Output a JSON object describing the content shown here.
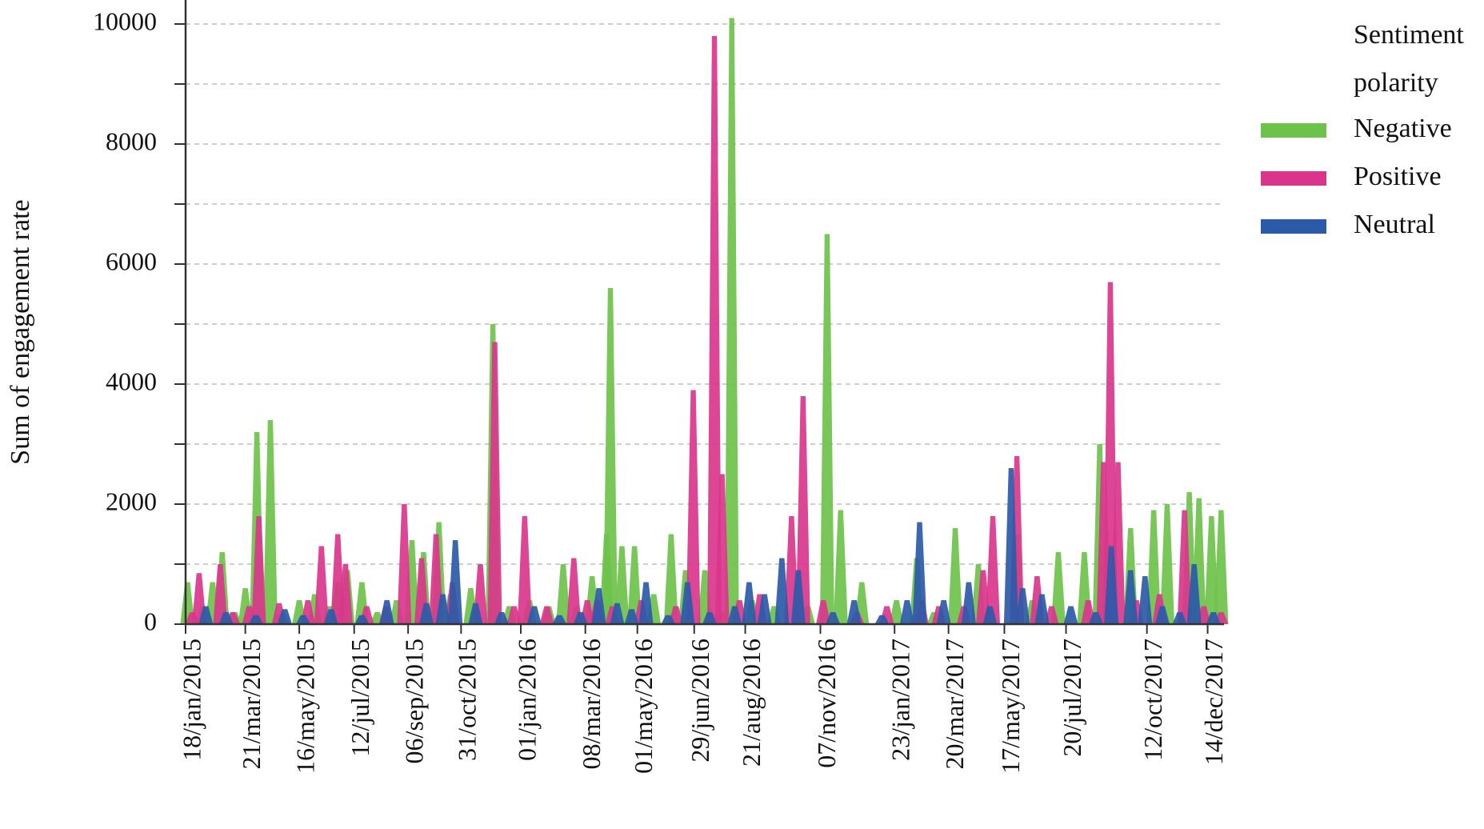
{
  "chart_data": {
    "type": "area",
    "title": "",
    "xlabel": "",
    "ylabel": "Sum of engagement rate",
    "ylim": [
      0,
      10000
    ],
    "y_ticks": [
      0,
      2000,
      4000,
      6000,
      8000,
      10000
    ],
    "x_range": [
      "2015-01-18",
      "2017-12-31"
    ],
    "x_tick_labels": [
      "18/jan/2015",
      "21/mar/2015",
      "16/may/2015",
      "12/jul/2015",
      "06/sep/2015",
      "31/oct/2015",
      "01/jan/2016",
      "08/mar/2016",
      "01/may/2016",
      "29/jun/2016",
      "21/aug/2016",
      "07/nov/2016",
      "23/jan/2017",
      "20/mar/2017",
      "17/may/2017",
      "20/jul/2017",
      "12/oct/2017",
      "14/dec/2017"
    ],
    "x_tick_dates": [
      "2015-01-18",
      "2015-03-21",
      "2015-05-16",
      "2015-07-12",
      "2015-09-06",
      "2015-10-31",
      "2016-01-01",
      "2016-03-08",
      "2016-05-01",
      "2016-06-29",
      "2016-08-21",
      "2016-11-07",
      "2017-01-23",
      "2017-03-20",
      "2017-05-17",
      "2017-07-20",
      "2017-10-12",
      "2017-12-14"
    ],
    "grid": "horizontal dashed",
    "legend": {
      "title_line1": "Sentiment",
      "title_line2": "polarity",
      "placement": "right"
    },
    "series": [
      {
        "name": "Negative",
        "color": "#6cc24a",
        "points": [
          [
            "2015-01-20",
            700
          ],
          [
            "2015-02-05",
            300
          ],
          [
            "2015-02-15",
            700
          ],
          [
            "2015-02-25",
            1200
          ],
          [
            "2015-03-10",
            200
          ],
          [
            "2015-03-21",
            600
          ],
          [
            "2015-04-02",
            3200
          ],
          [
            "2015-04-16",
            3400
          ],
          [
            "2015-04-28",
            200
          ],
          [
            "2015-05-16",
            400
          ],
          [
            "2015-06-01",
            500
          ],
          [
            "2015-06-16",
            300
          ],
          [
            "2015-06-25",
            700
          ],
          [
            "2015-07-05",
            900
          ],
          [
            "2015-07-20",
            700
          ],
          [
            "2015-08-05",
            200
          ],
          [
            "2015-08-25",
            400
          ],
          [
            "2015-09-10",
            1400
          ],
          [
            "2015-09-22",
            1200
          ],
          [
            "2015-10-08",
            1700
          ],
          [
            "2015-10-20",
            500
          ],
          [
            "2015-11-10",
            600
          ],
          [
            "2015-12-03",
            5000
          ],
          [
            "2015-12-20",
            300
          ],
          [
            "2016-01-10",
            400
          ],
          [
            "2016-01-30",
            300
          ],
          [
            "2016-02-14",
            1000
          ],
          [
            "2016-02-28",
            300
          ],
          [
            "2016-03-15",
            800
          ],
          [
            "2016-03-30",
            1500
          ],
          [
            "2016-04-03",
            5600
          ],
          [
            "2016-04-15",
            1300
          ],
          [
            "2016-04-28",
            1300
          ],
          [
            "2016-05-18",
            500
          ],
          [
            "2016-06-05",
            1500
          ],
          [
            "2016-06-20",
            900
          ],
          [
            "2016-07-10",
            900
          ],
          [
            "2016-07-28",
            200
          ],
          [
            "2016-08-07",
            10100
          ],
          [
            "2016-08-28",
            400
          ],
          [
            "2016-09-20",
            300
          ],
          [
            "2016-10-25",
            300
          ],
          [
            "2016-11-14",
            6500
          ],
          [
            "2016-11-28",
            1900
          ],
          [
            "2016-12-20",
            700
          ],
          [
            "2017-01-25",
            400
          ],
          [
            "2017-02-15",
            1100
          ],
          [
            "2017-03-05",
            200
          ],
          [
            "2017-03-27",
            1600
          ],
          [
            "2017-04-20",
            1000
          ],
          [
            "2017-05-30",
            1500
          ],
          [
            "2017-06-15",
            400
          ],
          [
            "2017-07-12",
            1200
          ],
          [
            "2017-08-08",
            1200
          ],
          [
            "2017-08-24",
            3000
          ],
          [
            "2017-09-25",
            1600
          ],
          [
            "2017-10-19",
            1900
          ],
          [
            "2017-11-02",
            2000
          ],
          [
            "2017-11-25",
            2200
          ],
          [
            "2017-12-05",
            2100
          ],
          [
            "2017-12-18",
            1800
          ],
          [
            "2017-12-28",
            1900
          ]
        ]
      },
      {
        "name": "Positive",
        "color": "#d9368b",
        "points": [
          [
            "2015-01-25",
            200
          ],
          [
            "2015-02-01",
            850
          ],
          [
            "2015-02-23",
            1000
          ],
          [
            "2015-03-08",
            200
          ],
          [
            "2015-03-25",
            300
          ],
          [
            "2015-04-04",
            1800
          ],
          [
            "2015-04-25",
            350
          ],
          [
            "2015-05-25",
            400
          ],
          [
            "2015-06-08",
            1300
          ],
          [
            "2015-06-25",
            1500
          ],
          [
            "2015-07-03",
            1000
          ],
          [
            "2015-07-25",
            300
          ],
          [
            "2015-08-14",
            300
          ],
          [
            "2015-09-02",
            2000
          ],
          [
            "2015-09-20",
            1100
          ],
          [
            "2015-10-05",
            1500
          ],
          [
            "2015-10-22",
            700
          ],
          [
            "2015-11-20",
            1000
          ],
          [
            "2015-12-05",
            4700
          ],
          [
            "2015-12-25",
            300
          ],
          [
            "2016-01-05",
            1800
          ],
          [
            "2016-01-28",
            300
          ],
          [
            "2016-02-25",
            1100
          ],
          [
            "2016-03-10",
            400
          ],
          [
            "2016-03-20",
            400
          ],
          [
            "2016-04-05",
            300
          ],
          [
            "2016-05-05",
            400
          ],
          [
            "2016-06-10",
            300
          ],
          [
            "2016-06-28",
            3900
          ],
          [
            "2016-07-20",
            9800
          ],
          [
            "2016-07-28",
            2500
          ],
          [
            "2016-08-15",
            400
          ],
          [
            "2016-09-05",
            500
          ],
          [
            "2016-10-08",
            1800
          ],
          [
            "2016-10-20",
            3800
          ],
          [
            "2016-11-10",
            400
          ],
          [
            "2016-12-15",
            200
          ],
          [
            "2017-01-15",
            300
          ],
          [
            "2017-02-20",
            400
          ],
          [
            "2017-03-10",
            300
          ],
          [
            "2017-04-05",
            300
          ],
          [
            "2017-04-25",
            900
          ],
          [
            "2017-05-05",
            1800
          ],
          [
            "2017-05-30",
            2800
          ],
          [
            "2017-06-20",
            800
          ],
          [
            "2017-07-05",
            300
          ],
          [
            "2017-08-12",
            400
          ],
          [
            "2017-08-28",
            2700
          ],
          [
            "2017-09-04",
            5700
          ],
          [
            "2017-09-12",
            2700
          ],
          [
            "2017-10-01",
            400
          ],
          [
            "2017-10-25",
            500
          ],
          [
            "2017-11-20",
            1900
          ],
          [
            "2017-12-10",
            300
          ],
          [
            "2017-12-28",
            200
          ]
        ]
      },
      {
        "name": "Neutral",
        "color": "#2b5aa8",
        "points": [
          [
            "2015-02-08",
            300
          ],
          [
            "2015-03-01",
            200
          ],
          [
            "2015-04-01",
            150
          ],
          [
            "2015-05-01",
            250
          ],
          [
            "2015-05-20",
            150
          ],
          [
            "2015-06-18",
            250
          ],
          [
            "2015-07-20",
            150
          ],
          [
            "2015-08-15",
            400
          ],
          [
            "2015-09-25",
            350
          ],
          [
            "2015-10-12",
            500
          ],
          [
            "2015-10-25",
            1400
          ],
          [
            "2015-11-15",
            350
          ],
          [
            "2015-12-12",
            200
          ],
          [
            "2016-01-15",
            300
          ],
          [
            "2016-02-10",
            150
          ],
          [
            "2016-03-03",
            200
          ],
          [
            "2016-03-22",
            600
          ],
          [
            "2016-04-10",
            350
          ],
          [
            "2016-04-25",
            250
          ],
          [
            "2016-05-10",
            700
          ],
          [
            "2016-06-02",
            150
          ],
          [
            "2016-06-22",
            700
          ],
          [
            "2016-07-15",
            200
          ],
          [
            "2016-08-10",
            300
          ],
          [
            "2016-08-25",
            700
          ],
          [
            "2016-09-10",
            500
          ],
          [
            "2016-09-28",
            1100
          ],
          [
            "2016-10-15",
            900
          ],
          [
            "2016-11-20",
            200
          ],
          [
            "2016-12-12",
            400
          ],
          [
            "2017-01-10",
            150
          ],
          [
            "2017-02-05",
            400
          ],
          [
            "2017-02-18",
            1700
          ],
          [
            "2017-03-15",
            400
          ],
          [
            "2017-04-10",
            700
          ],
          [
            "2017-05-02",
            300
          ],
          [
            "2017-05-24",
            2600
          ],
          [
            "2017-06-05",
            600
          ],
          [
            "2017-06-25",
            500
          ],
          [
            "2017-07-25",
            300
          ],
          [
            "2017-08-20",
            200
          ],
          [
            "2017-09-05",
            1300
          ],
          [
            "2017-09-25",
            900
          ],
          [
            "2017-10-10",
            800
          ],
          [
            "2017-10-28",
            300
          ],
          [
            "2017-11-15",
            200
          ],
          [
            "2017-11-30",
            1000
          ],
          [
            "2017-12-20",
            200
          ]
        ]
      }
    ]
  }
}
